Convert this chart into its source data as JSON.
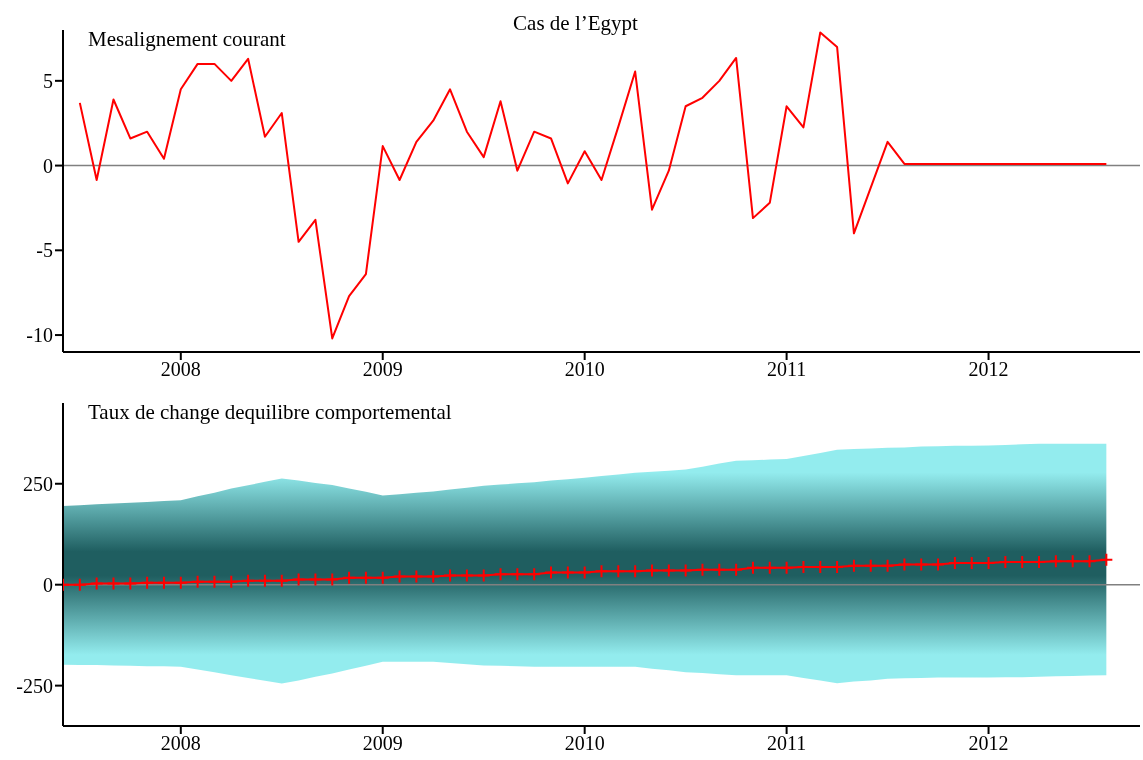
{
  "chart_data": [
    {
      "type": "line",
      "title": "Cas de l’Egypt",
      "subtitle": "Mesalignement courant",
      "x": [
        "2007-07",
        "2007-08",
        "2007-09",
        "2007-10",
        "2007-11",
        "2007-12",
        "2008-01",
        "2008-02",
        "2008-03",
        "2008-04",
        "2008-05",
        "2008-06",
        "2008-07",
        "2008-08",
        "2008-09",
        "2008-10",
        "2008-11",
        "2008-12",
        "2009-01",
        "2009-02",
        "2009-03",
        "2009-04",
        "2009-05",
        "2009-06",
        "2009-07",
        "2009-08",
        "2009-09",
        "2009-10",
        "2009-11",
        "2009-12",
        "2010-01",
        "2010-02",
        "2010-03",
        "2010-04",
        "2010-05",
        "2010-06",
        "2010-07",
        "2010-08",
        "2010-09",
        "2010-10",
        "2010-11",
        "2010-12",
        "2011-01",
        "2011-02",
        "2011-03",
        "2011-04",
        "2011-05",
        "2011-06",
        "2011-07",
        "2011-08",
        "2011-09",
        "2011-10",
        "2011-11",
        "2011-12",
        "2012-01",
        "2012-02",
        "2012-03",
        "2012-04",
        "2012-05",
        "2012-06",
        "2012-07",
        "2012-08"
      ],
      "series": [
        {
          "color": "#ff0000",
          "values": [
            3.7,
            -0.85,
            3.9,
            1.6,
            2.0,
            0.4,
            4.5,
            6.0,
            6.0,
            5.0,
            6.3,
            1.7,
            3.1,
            -4.5,
            -3.2,
            -10.2,
            -7.7,
            -6.4,
            1.15,
            -0.85,
            1.4,
            2.65,
            4.5,
            2.0,
            0.5,
            3.8,
            -0.3,
            2.0,
            1.6,
            -1.05,
            0.85,
            -0.85,
            2.3,
            5.55,
            -2.6,
            -0.3,
            3.5,
            4.0,
            5.0,
            6.35,
            -3.1,
            -2.2,
            3.5,
            2.25,
            7.85,
            7.0,
            -4.0,
            -1.3,
            1.4,
            0.1,
            0.1,
            0.1,
            0.1,
            0.1,
            0.1,
            0.1,
            0.1,
            0.1,
            0.1,
            0.1,
            0.1,
            0.1
          ]
        }
      ],
      "xlim": [
        "2007-06",
        "2012-10"
      ],
      "xticks": [
        "2008",
        "2009",
        "2010",
        "2011",
        "2012"
      ],
      "ylim": [
        -11,
        8
      ],
      "yticks": [
        -10,
        -5,
        0,
        5
      ],
      "ref_lines": [
        {
          "axis": "y",
          "value": 0,
          "color": "#808080"
        }
      ]
    },
    {
      "type": "line",
      "title": "Taux de change dequilibre comportemental",
      "x": [
        "2007-06",
        "2007-07",
        "2007-08",
        "2007-09",
        "2007-10",
        "2007-11",
        "2007-12",
        "2008-01",
        "2008-02",
        "2008-03",
        "2008-04",
        "2008-05",
        "2008-06",
        "2008-07",
        "2008-08",
        "2008-09",
        "2008-10",
        "2008-11",
        "2008-12",
        "2009-01",
        "2009-02",
        "2009-03",
        "2009-04",
        "2009-05",
        "2009-06",
        "2009-07",
        "2009-08",
        "2009-09",
        "2009-10",
        "2009-11",
        "2009-12",
        "2010-01",
        "2010-02",
        "2010-03",
        "2010-04",
        "2010-05",
        "2010-06",
        "2010-07",
        "2010-08",
        "2010-09",
        "2010-10",
        "2010-11",
        "2010-12",
        "2011-01",
        "2011-02",
        "2011-03",
        "2011-04",
        "2011-05",
        "2011-06",
        "2011-07",
        "2011-08",
        "2011-09",
        "2011-10",
        "2011-11",
        "2011-12",
        "2012-01",
        "2012-02",
        "2012-03",
        "2012-04",
        "2012-05",
        "2012-06",
        "2012-07",
        "2012-08"
      ],
      "series": [
        {
          "color": "#ff0000",
          "upper": [
            195,
            197,
            199,
            201,
            203,
            205,
            207,
            209,
            219,
            228,
            238,
            246,
            255,
            263,
            258,
            252,
            247,
            238,
            230,
            221,
            224,
            228,
            231,
            236,
            240,
            245,
            248,
            251,
            254,
            258,
            261,
            265,
            269,
            273,
            277,
            280,
            282,
            285,
            292,
            300,
            307,
            308,
            310,
            311,
            319,
            326,
            334,
            336,
            337,
            339,
            340,
            342,
            343,
            344,
            344,
            345,
            346,
            348,
            349,
            349,
            349,
            349,
            349
          ],
          "lower": [
            -198,
            -199,
            -199,
            -200,
            -201,
            -202,
            -202,
            -203,
            -210,
            -217,
            -224,
            -231,
            -238,
            -245,
            -237,
            -228,
            -220,
            -210,
            -201,
            -191,
            -191,
            -191,
            -191,
            -194,
            -197,
            -200,
            -201,
            -202,
            -203,
            -203,
            -203,
            -203,
            -203,
            -203,
            -203,
            -208,
            -212,
            -217,
            -219,
            -222,
            -224,
            -224,
            -224,
            -224,
            -231,
            -237,
            -244,
            -240,
            -237,
            -233,
            -232,
            -231,
            -230,
            -230,
            -230,
            -230,
            -229,
            -229,
            -228,
            -227,
            -226,
            -225,
            -224
          ],
          "values": [
            0,
            0,
            3,
            3,
            3,
            5,
            5,
            5,
            7,
            7,
            7,
            10,
            10,
            10,
            13,
            13,
            13,
            17,
            17,
            17,
            20,
            20,
            20,
            23,
            23,
            23,
            26,
            26,
            26,
            30,
            30,
            30,
            33,
            33,
            33,
            35,
            35,
            35,
            37,
            37,
            37,
            42,
            42,
            42,
            44,
            44,
            44,
            47,
            47,
            47,
            50,
            50,
            50,
            54,
            54,
            54,
            56,
            56,
            56,
            58,
            58,
            58,
            62
          ]
        }
      ],
      "marker": "cross",
      "xlim": [
        "2007-06",
        "2012-10"
      ],
      "xticks": [
        "2008",
        "2009",
        "2010",
        "2011",
        "2012"
      ],
      "ylim": [
        -350,
        450
      ],
      "yticks": [
        -250,
        0,
        250
      ],
      "ref_lines": [
        {
          "axis": "y",
          "value": 0,
          "color": "#808080"
        }
      ]
    }
  ]
}
